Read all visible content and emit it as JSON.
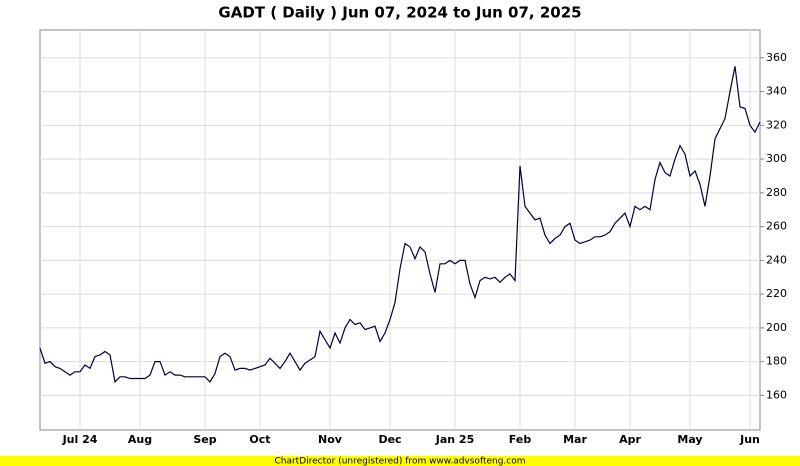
{
  "chart_data": {
    "type": "line",
    "title": "GADT ( Daily ) Jun 07, 2024 to Jun 07, 2025",
    "footer": "ChartDirector (unregistered) from www.advsofteng.com",
    "categories": [
      null,
      null,
      null,
      null,
      null,
      null,
      null,
      null,
      "Jul 24",
      null,
      null,
      null,
      null,
      null,
      null,
      null,
      null,
      null,
      null,
      null,
      "Aug",
      null,
      null,
      null,
      null,
      null,
      null,
      null,
      null,
      null,
      null,
      null,
      null,
      "Sep",
      null,
      null,
      null,
      null,
      null,
      null,
      null,
      null,
      null,
      null,
      "Oct",
      null,
      null,
      null,
      null,
      null,
      null,
      null,
      null,
      null,
      null,
      null,
      null,
      null,
      "Nov",
      null,
      null,
      null,
      null,
      null,
      null,
      null,
      null,
      null,
      null,
      null,
      "Dec",
      null,
      null,
      null,
      null,
      null,
      null,
      null,
      null,
      null,
      null,
      null,
      null,
      "Jan 25",
      null,
      null,
      null,
      null,
      null,
      null,
      null,
      null,
      null,
      null,
      null,
      null,
      "Feb",
      null,
      null,
      null,
      null,
      null,
      null,
      null,
      null,
      null,
      null,
      "Mar",
      null,
      null,
      null,
      null,
      null,
      null,
      null,
      null,
      null,
      null,
      "Apr",
      null,
      null,
      null,
      null,
      null,
      null,
      null,
      null,
      null,
      null,
      null,
      "May",
      null,
      null,
      null,
      null,
      null,
      null,
      null,
      null,
      null,
      null,
      null,
      "Jun",
      null,
      null
    ],
    "values": [
      188,
      179,
      180,
      177,
      176,
      174,
      172,
      174,
      174,
      178,
      176,
      183,
      184,
      186,
      184,
      168,
      171,
      171,
      170,
      170,
      170,
      170,
      172,
      180,
      180,
      172,
      174,
      172,
      172,
      171,
      171,
      171,
      171,
      171,
      168,
      173,
      183,
      185,
      183,
      175,
      176,
      176,
      175,
      176,
      177,
      178,
      182,
      179,
      176,
      180,
      185,
      180,
      175,
      179,
      181,
      183,
      198,
      193,
      188,
      197,
      191,
      200,
      205,
      202,
      203,
      199,
      200,
      201,
      192,
      197,
      205,
      215,
      235,
      250,
      248,
      241,
      248,
      245,
      232,
      221,
      238,
      238,
      240,
      238,
      240,
      240,
      226,
      218,
      228,
      230,
      229,
      230,
      227,
      230,
      232,
      228,
      296,
      272,
      268,
      264,
      265,
      255,
      250,
      253,
      255,
      260,
      262,
      252,
      250,
      251,
      252,
      254,
      254,
      255,
      257,
      262,
      265,
      268,
      260,
      272,
      270,
      272,
      270,
      288,
      298,
      292,
      290,
      300,
      308,
      303,
      290,
      293,
      285,
      272,
      290,
      312,
      318,
      324,
      340,
      355,
      331,
      330,
      320,
      316,
      322
    ],
    "color": "#000040",
    "ylim": [
      139.5,
      376.5
    ],
    "yticks": [
      160,
      180,
      200,
      220,
      240,
      260,
      280,
      300,
      320,
      340,
      360
    ],
    "grid": true
  }
}
